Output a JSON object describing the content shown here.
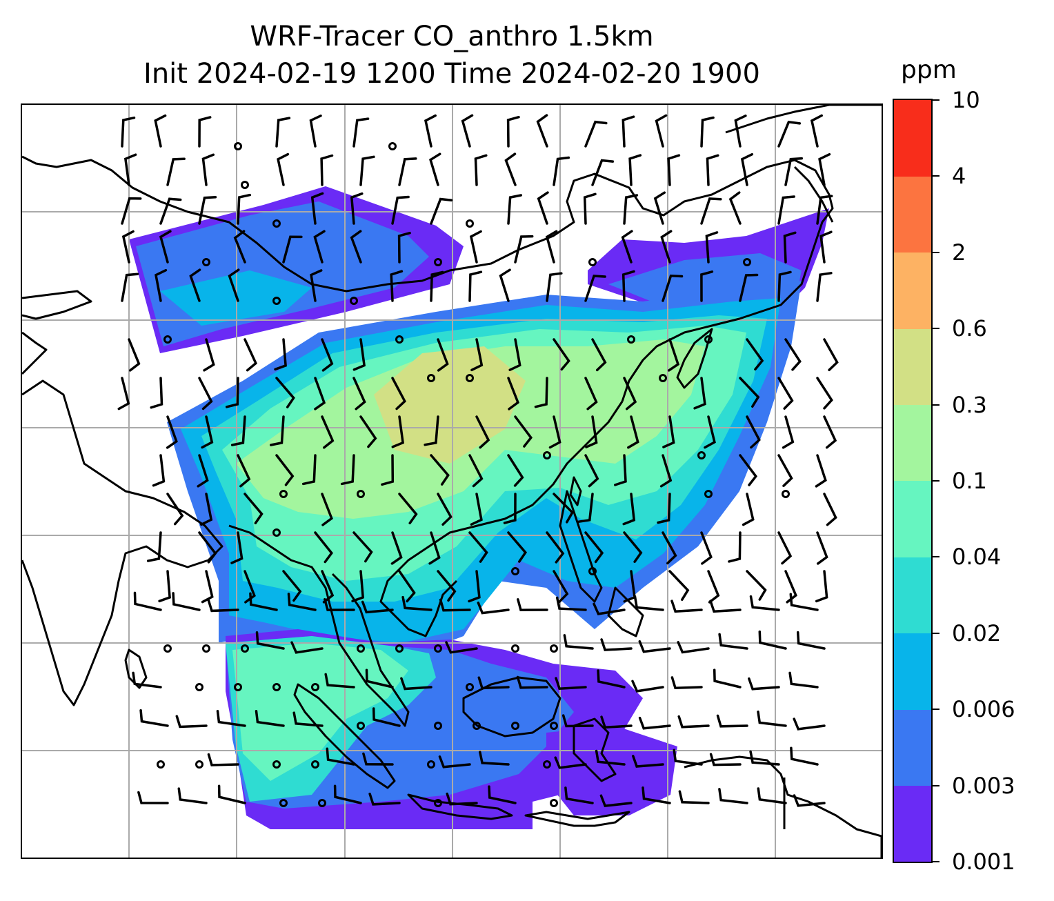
{
  "title": {
    "line1": "WRF-Tracer CO_anthro 1.5km",
    "line2": "Init 2024-02-19 1200 Time 2024-02-20 1900"
  },
  "colorbar": {
    "unit": "ppm",
    "levels": [
      "0.001",
      "0.003",
      "0.006",
      "0.02",
      "0.04",
      "0.1",
      "0.3",
      "0.6",
      "2",
      "4",
      "10"
    ],
    "colors": [
      "#6a2bf5",
      "#3a78f2",
      "#08b4ea",
      "#2fdcd2",
      "#66f5c0",
      "#a3f59e",
      "#d2e085",
      "#fdb263",
      "#fc7440",
      "#f82d1b"
    ]
  },
  "map": {
    "gridlines": true,
    "coastline_color": "#000000",
    "grid_color": "#aaaaaa",
    "wind_barb_color": "#000000"
  }
}
